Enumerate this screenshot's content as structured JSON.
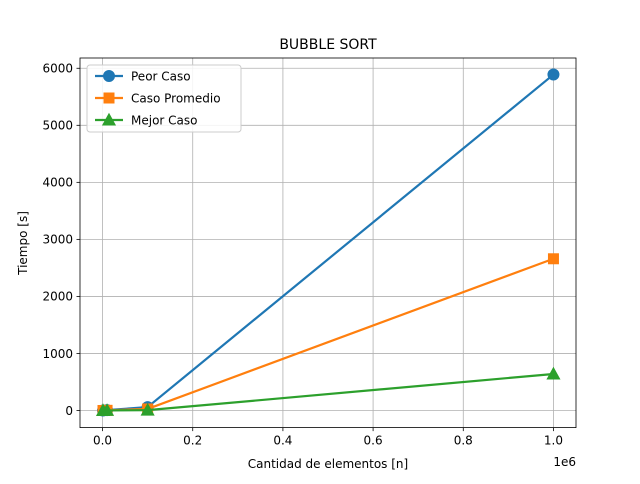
{
  "chart_data": {
    "type": "line",
    "title": "BUBBLE SORT",
    "xlabel": "Cantidad de elementos [n]",
    "ylabel": "Tiempo [s]",
    "x_offset_text": "1e6",
    "x_scale": 1000000,
    "xlim": [
      -50000,
      1050000
    ],
    "ylim": [
      -300,
      6180
    ],
    "x_ticks": [
      0,
      200000,
      400000,
      600000,
      800000,
      1000000
    ],
    "x_tick_labels": [
      "0.0",
      "0.2",
      "0.4",
      "0.6",
      "0.8",
      "1.0"
    ],
    "y_ticks": [
      0,
      1000,
      2000,
      3000,
      4000,
      5000,
      6000
    ],
    "y_tick_labels": [
      "0",
      "1000",
      "2000",
      "3000",
      "4000",
      "5000",
      "6000"
    ],
    "grid": true,
    "legend_position": "upper-left",
    "series": [
      {
        "name": "Peor Caso",
        "color": "#1f77b4",
        "marker": "circle",
        "x": [
          1000,
          10000,
          100000,
          1000000
        ],
        "y": [
          0.06,
          6,
          60,
          5890
        ]
      },
      {
        "name": "Caso Promedio",
        "color": "#ff7f0e",
        "marker": "square",
        "x": [
          1000,
          10000,
          100000,
          1000000
        ],
        "y": [
          0.03,
          3,
          27,
          2660
        ]
      },
      {
        "name": "Mejor Caso",
        "color": "#2ca02c",
        "marker": "triangle",
        "x": [
          1000,
          10000,
          100000,
          1000000
        ],
        "y": [
          0.01,
          1,
          6,
          640
        ]
      }
    ]
  }
}
